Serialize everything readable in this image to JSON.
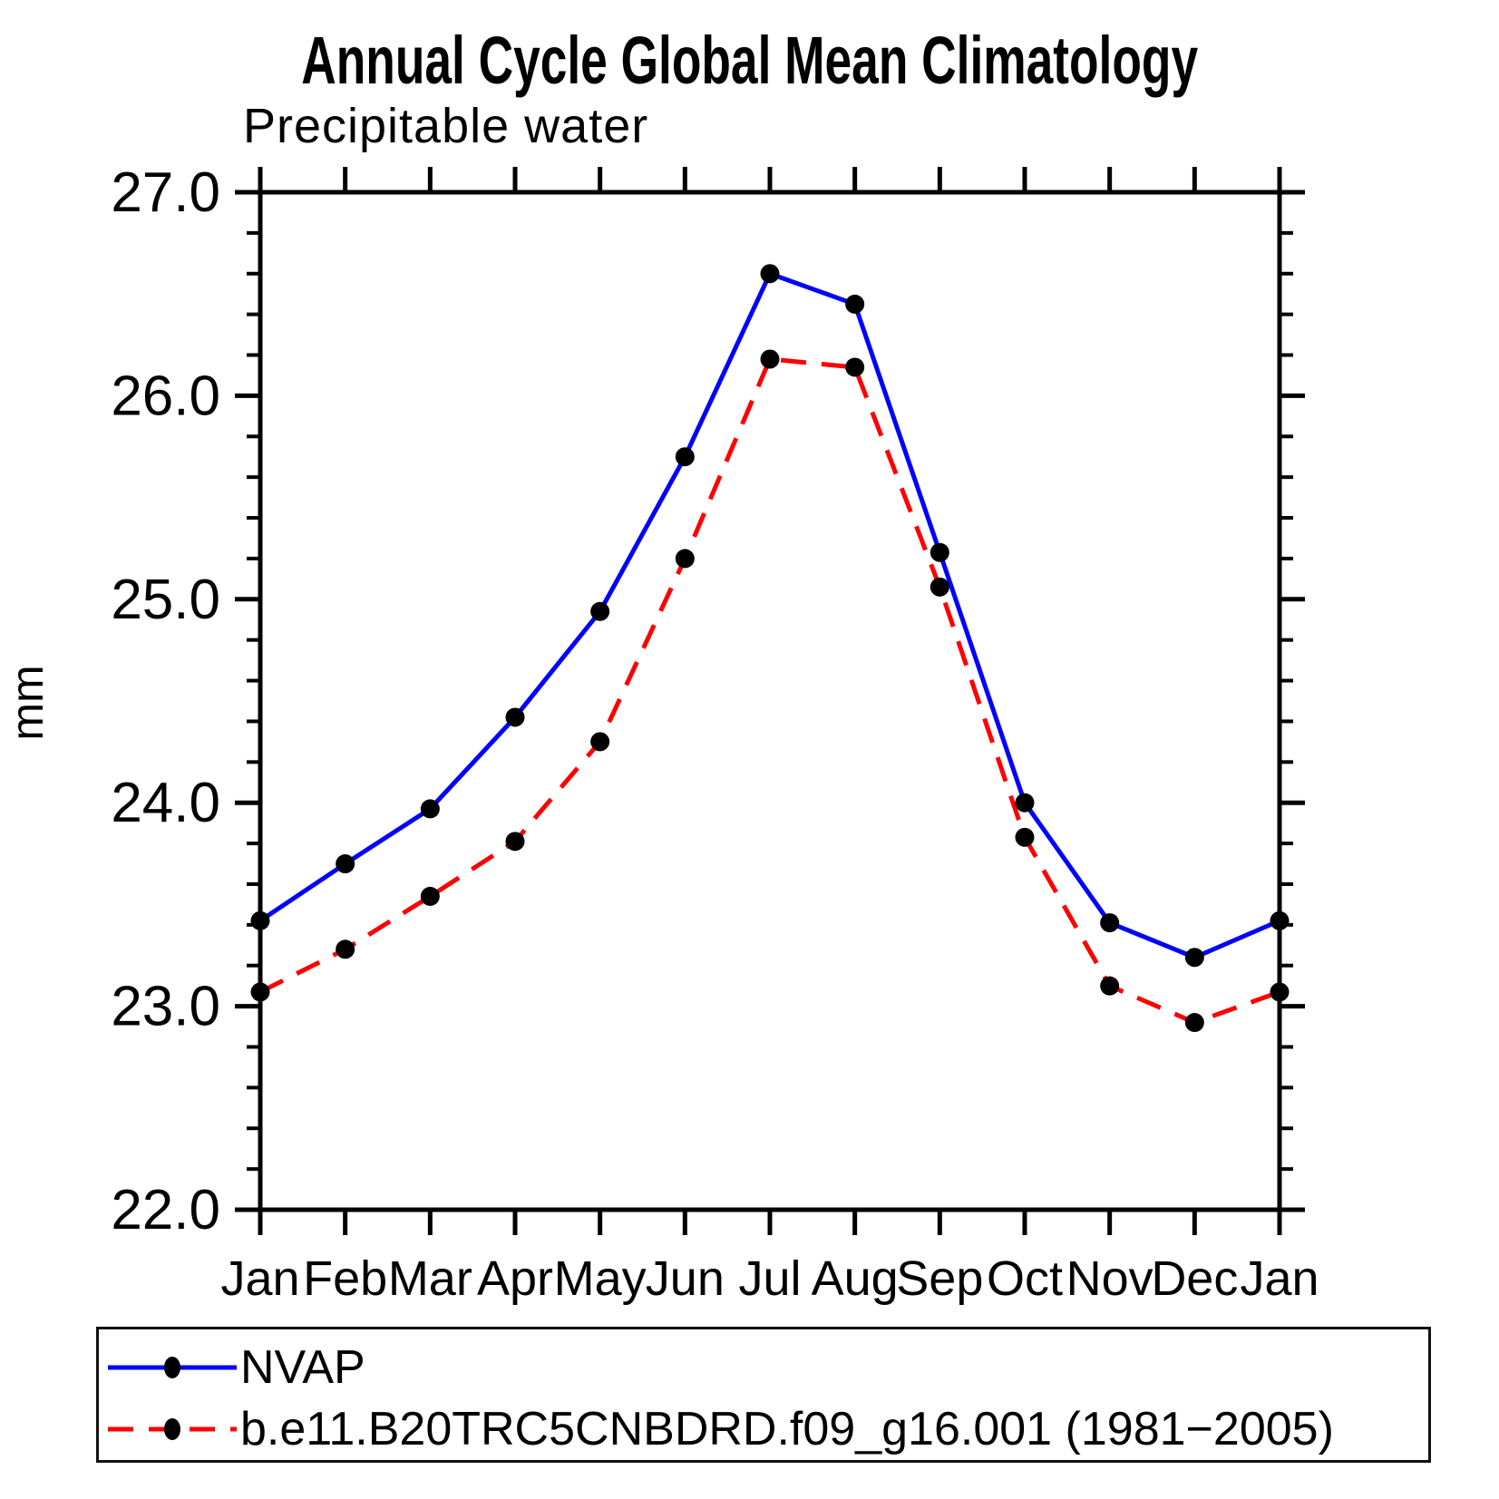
{
  "chart_data": {
    "type": "line",
    "title": "Annual Cycle Global Mean Climatology",
    "subtitle": "Precipitable water",
    "ylabel": "mm",
    "xlabel": "",
    "categories": [
      "Jan",
      "Feb",
      "Mar",
      "Apr",
      "May",
      "Jun",
      "Jul",
      "Aug",
      "Sep",
      "Oct",
      "Nov",
      "Dec",
      "Jan"
    ],
    "ylim": [
      22.0,
      27.0
    ],
    "ytick_major": 1.0,
    "ytick_minor": 0.2,
    "ytick_labels": [
      "22.0",
      "23.0",
      "24.0",
      "25.0",
      "26.0",
      "27.0"
    ],
    "grid": false,
    "legend_position": "bottom-left-box",
    "background_color": "#ffffff",
    "axis_color": "#000000",
    "marker": "filled-circle",
    "marker_color": "#000000",
    "series": [
      {
        "name": "NVAP",
        "color": "#0000ff",
        "style": "solid",
        "values": [
          23.42,
          23.7,
          23.97,
          24.42,
          24.94,
          25.7,
          26.6,
          26.45,
          25.23,
          24.0,
          23.41,
          23.24,
          23.42
        ]
      },
      {
        "name": "b.e11.B20TRC5CNBDRD.f09_g16.001 (1981−2005)",
        "color": "#ff0000",
        "style": "dashed",
        "values": [
          23.07,
          23.28,
          23.54,
          23.81,
          24.3,
          25.2,
          26.18,
          26.14,
          25.06,
          23.83,
          23.1,
          22.92,
          23.07
        ]
      }
    ]
  }
}
